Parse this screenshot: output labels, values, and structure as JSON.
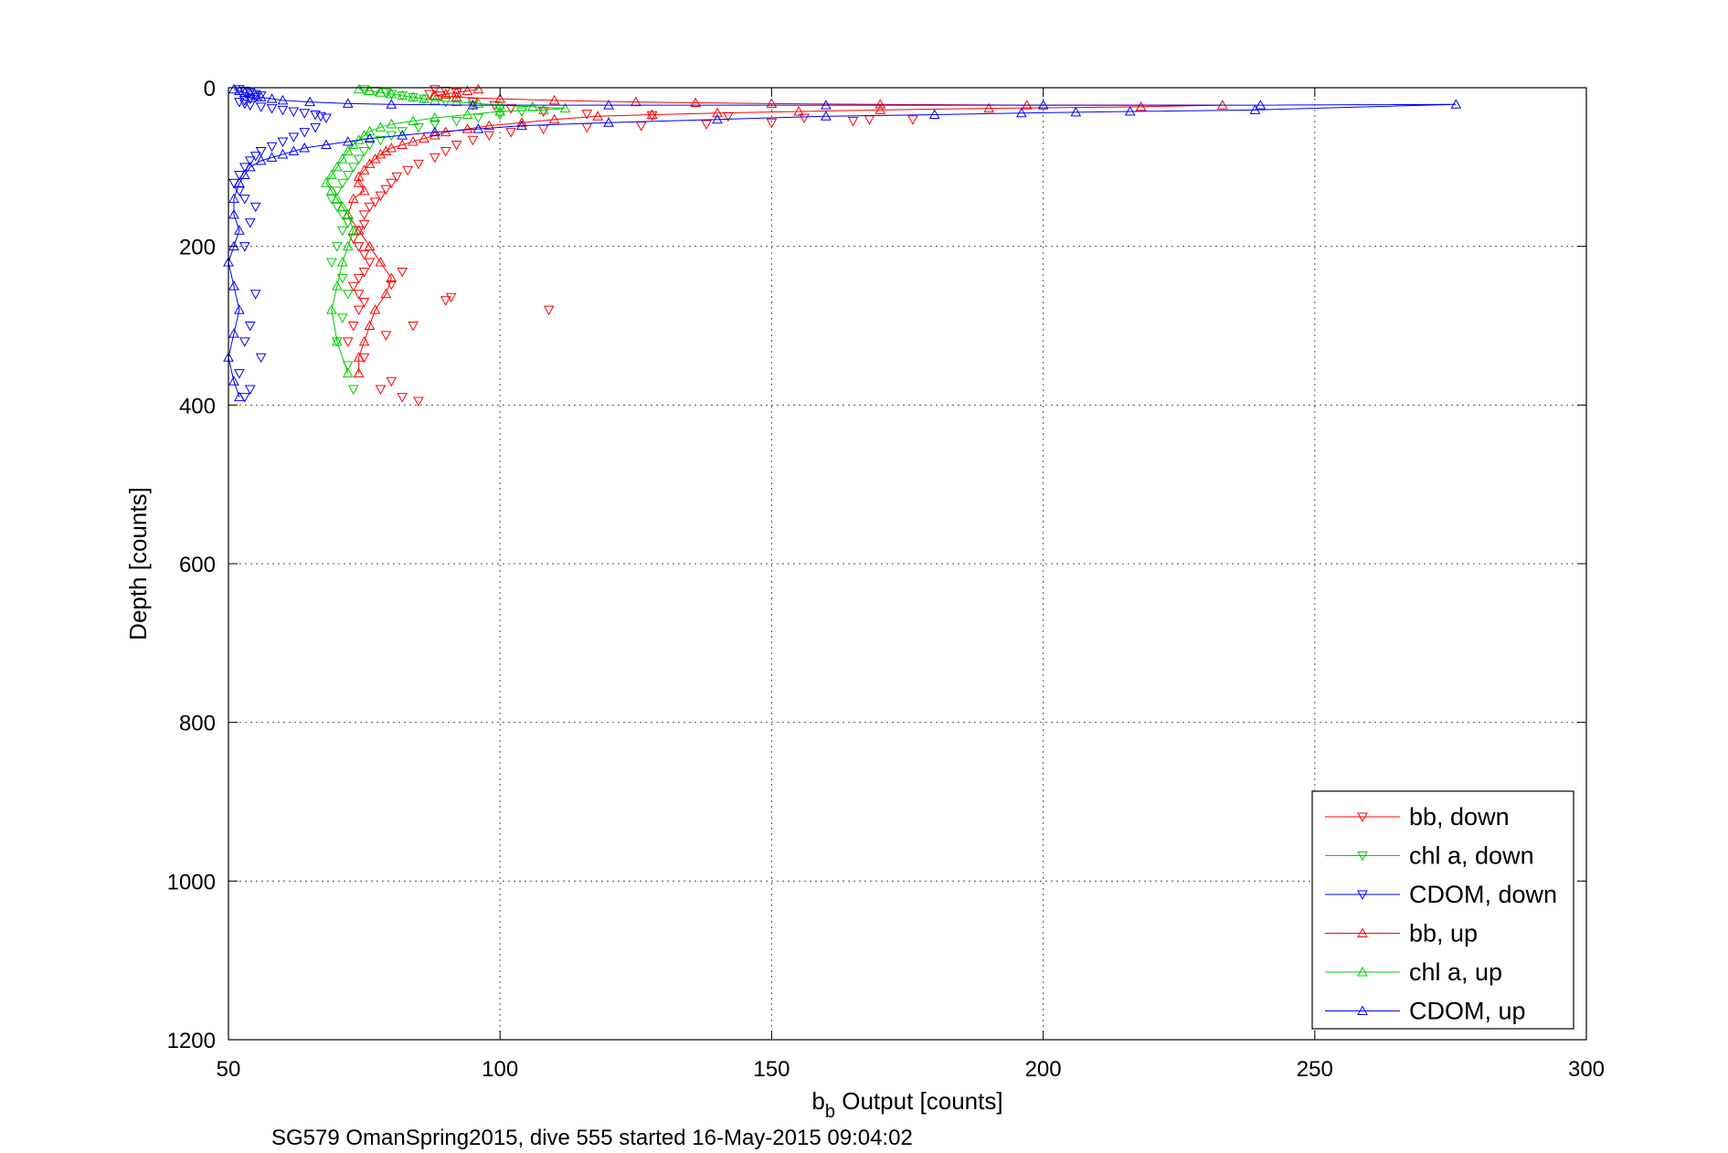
{
  "chart_data": {
    "type": "scatter",
    "xlabel": {
      "main": "b",
      "sub": "b",
      "rest": " Output [counts]"
    },
    "ylabel": "Depth [counts]",
    "caption": "SG579 OmanSpring2015, dive 555 started 16-May-2015 09:04:02",
    "xlim": [
      50,
      300
    ],
    "ylim": [
      0,
      1200
    ],
    "y_reversed": true,
    "xticks": [
      50,
      100,
      150,
      200,
      250,
      300
    ],
    "yticks": [
      0,
      200,
      400,
      600,
      800,
      1000,
      1200
    ],
    "grid": true,
    "legend_position": "bottom-right",
    "series": [
      {
        "name": "bb, down",
        "color": "#ff0000",
        "marker": "triangle-down",
        "connected": false,
        "x": [
          88,
          90,
          92,
          87,
          89,
          95,
          99,
          102,
          108,
          116,
          128,
          142,
          156,
          168,
          176,
          165,
          150,
          138,
          126,
          116,
          108,
          102,
          98,
          95,
          92,
          90,
          88,
          85,
          83,
          81,
          80,
          79,
          78,
          77,
          76,
          75,
          75,
          74,
          73,
          74,
          75,
          76,
          75,
          74,
          73,
          74,
          75,
          74,
          73,
          72,
          75,
          80,
          82,
          91,
          90,
          109,
          84,
          79,
          80,
          78,
          82,
          85
        ],
        "y": [
          2,
          4,
          6,
          8,
          10,
          18,
          22,
          26,
          30,
          33,
          35,
          36,
          38,
          40,
          40,
          42,
          44,
          46,
          48,
          50,
          52,
          56,
          60,
          66,
          72,
          80,
          88,
          96,
          104,
          112,
          120,
          128,
          136,
          144,
          150,
          160,
          172,
          180,
          190,
          200,
          210,
          220,
          232,
          240,
          250,
          260,
          270,
          280,
          300,
          320,
          340,
          248,
          232,
          264,
          268,
          280,
          300,
          312,
          370,
          380,
          390,
          395
        ]
      },
      {
        "name": "chl a, down",
        "color": "#00cc00",
        "marker": "triangle-down",
        "connected": false,
        "x": [
          75,
          77,
          79,
          80,
          82,
          84,
          86,
          90,
          95,
          100,
          104,
          100,
          96,
          92,
          88,
          85,
          82,
          80,
          78,
          76,
          75,
          74,
          73,
          72,
          71,
          70,
          69,
          70,
          71,
          72,
          71,
          70,
          69,
          71,
          72,
          71,
          70,
          72,
          73
        ],
        "y": [
          2,
          4,
          6,
          8,
          10,
          12,
          14,
          18,
          22,
          26,
          30,
          34,
          38,
          42,
          46,
          50,
          55,
          60,
          66,
          72,
          80,
          90,
          100,
          110,
          120,
          130,
          140,
          150,
          160,
          170,
          180,
          200,
          220,
          240,
          260,
          290,
          320,
          350,
          380
        ]
      },
      {
        "name": "CDOM, down",
        "color": "#0000ff",
        "marker": "triangle-down",
        "connected": false,
        "x": [
          52,
          53,
          54,
          55,
          56,
          55,
          54,
          53,
          52,
          53,
          54,
          56,
          58,
          60,
          62,
          64,
          66,
          67,
          68,
          66,
          64,
          62,
          60,
          58,
          56,
          55,
          54,
          53,
          52,
          51,
          52,
          53,
          55,
          54,
          53,
          55,
          54,
          53,
          56,
          52,
          54,
          53
        ],
        "y": [
          2,
          4,
          6,
          8,
          10,
          12,
          14,
          16,
          18,
          20,
          22,
          24,
          26,
          28,
          30,
          32,
          34,
          36,
          38,
          50,
          56,
          62,
          68,
          74,
          80,
          86,
          92,
          100,
          110,
          120,
          130,
          140,
          150,
          170,
          200,
          260,
          300,
          320,
          340,
          360,
          380,
          390
        ]
      },
      {
        "name": "bb, up",
        "color": "#ff0000",
        "marker": "triangle-up",
        "connected": true,
        "x": [
          96,
          94,
          92,
          90,
          88,
          92,
          100,
          110,
          125,
          136,
          150,
          170,
          197,
          233,
          218,
          190,
          170,
          155,
          140,
          128,
          118,
          110,
          104,
          98,
          94,
          90,
          88,
          86,
          84,
          82,
          80,
          79,
          78,
          77,
          76,
          75,
          74,
          74,
          75,
          73,
          72,
          74,
          76,
          78,
          80,
          79,
          77,
          76,
          75,
          74,
          74
        ],
        "y": [
          2,
          4,
          6,
          8,
          10,
          12,
          14,
          16,
          18,
          19,
          20,
          21,
          22,
          22,
          24,
          26,
          28,
          30,
          32,
          34,
          36,
          40,
          44,
          48,
          52,
          56,
          60,
          64,
          68,
          72,
          76,
          80,
          84,
          90,
          96,
          104,
          112,
          120,
          130,
          140,
          160,
          180,
          200,
          220,
          240,
          260,
          280,
          300,
          320,
          340,
          360
        ]
      },
      {
        "name": "chl a, up",
        "color": "#00cc00",
        "marker": "triangle-up",
        "connected": true,
        "x": [
          74,
          76,
          78,
          80,
          82,
          84,
          86,
          88,
          92,
          96,
          100,
          106,
          112,
          108,
          100,
          94,
          88,
          84,
          80,
          78,
          76,
          75,
          74,
          73,
          72,
          71,
          70,
          69,
          68,
          69,
          70,
          71,
          72,
          73,
          72,
          71,
          70,
          69,
          70,
          72
        ],
        "y": [
          2,
          4,
          6,
          8,
          10,
          12,
          14,
          16,
          18,
          20,
          22,
          24,
          26,
          28,
          30,
          34,
          38,
          42,
          46,
          50,
          55,
          60,
          66,
          72,
          80,
          90,
          100,
          110,
          120,
          130,
          140,
          150,
          160,
          180,
          200,
          220,
          250,
          280,
          320,
          360
        ]
      },
      {
        "name": "CDOM, up",
        "color": "#0000ff",
        "marker": "triangle-up",
        "connected": true,
        "x": [
          51,
          52,
          53,
          54,
          55,
          56,
          58,
          60,
          65,
          72,
          80,
          95,
          120,
          160,
          200,
          240,
          276,
          239,
          216,
          206,
          196,
          180,
          160,
          140,
          120,
          104,
          96,
          88,
          82,
          76,
          72,
          68,
          64,
          62,
          60,
          58,
          56,
          54,
          53,
          52,
          51,
          51,
          52,
          51,
          50,
          51,
          52,
          51,
          50,
          51,
          52
        ],
        "y": [
          2,
          4,
          6,
          8,
          10,
          12,
          14,
          16,
          18,
          20,
          21,
          22,
          22,
          22,
          22,
          22,
          21,
          28,
          30,
          31,
          32,
          34,
          36,
          40,
          44,
          48,
          52,
          56,
          60,
          64,
          68,
          72,
          76,
          80,
          84,
          88,
          92,
          100,
          110,
          120,
          140,
          160,
          180,
          200,
          220,
          250,
          280,
          310,
          340,
          370,
          390
        ]
      }
    ]
  }
}
